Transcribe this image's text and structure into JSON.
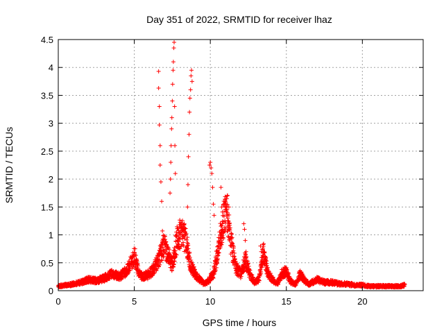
{
  "chart_data": {
    "type": "scatter",
    "title": "Day 351 of 2022, SRMTID for receiver lhaz",
    "xlabel": "GPS time / hours",
    "ylabel": "SRMTID / TECUs",
    "xlim": [
      0,
      24
    ],
    "ylim": [
      0,
      4.5
    ],
    "grid": true,
    "marker": "+",
    "color": "#ff0000",
    "x_ticks": [
      0,
      5,
      10,
      15,
      20
    ],
    "x_tick_labels": [
      "0",
      "5",
      "10",
      "15",
      "20"
    ],
    "y_ticks": [
      0,
      0.5,
      1,
      1.5,
      2,
      2.5,
      3,
      3.5,
      4,
      4.5
    ],
    "y_tick_labels": [
      "0",
      "0.5",
      "1",
      "1.5",
      "2",
      "2.5",
      "3",
      "3.5",
      "4",
      "4.5"
    ],
    "series": [
      {
        "name": "lhaz",
        "envelope": {
          "x": [
            0,
            0.5,
            1,
            1.5,
            2,
            2.5,
            3,
            3.5,
            4,
            4.5,
            4.8,
            5,
            5.3,
            5.6,
            6,
            6.3,
            6.6,
            6.9,
            7.2,
            7.5,
            7.8,
            8.1,
            8.4,
            8.7,
            9,
            9.3,
            9.6,
            9.9,
            10.2,
            10.5,
            10.8,
            11.1,
            11.4,
            11.7,
            12,
            12.3,
            12.6,
            12.9,
            13.2,
            13.5,
            13.8,
            14.1,
            14.4,
            14.7,
            15,
            15.3,
            15.6,
            15.9,
            16.2,
            16.5,
            17,
            17.5,
            18,
            18.5,
            19,
            19.5,
            20,
            20.5,
            21,
            21.5,
            22,
            22.5,
            22.8
          ],
          "y": [
            0.08,
            0.1,
            0.12,
            0.15,
            0.2,
            0.18,
            0.22,
            0.3,
            0.25,
            0.35,
            0.5,
            0.65,
            0.3,
            0.25,
            0.3,
            0.4,
            0.55,
            0.8,
            0.7,
            0.45,
            0.9,
            1.05,
            0.9,
            0.45,
            0.3,
            0.2,
            0.12,
            0.18,
            0.3,
            0.7,
            1.2,
            1.45,
            0.8,
            0.4,
            0.3,
            0.55,
            0.3,
            0.15,
            0.2,
            0.7,
            0.3,
            0.2,
            0.12,
            0.3,
            0.35,
            0.15,
            0.12,
            0.3,
            0.18,
            0.12,
            0.2,
            0.15,
            0.15,
            0.12,
            0.12,
            0.1,
            0.1,
            0.08,
            0.08,
            0.08,
            0.08,
            0.08,
            0.1
          ]
        },
        "spikes": [
          {
            "x": [
              6.6,
              6.6,
              6.65,
              6.65,
              6.7,
              6.7,
              6.75,
              6.8,
              6.85
            ],
            "y": [
              3.93,
              3.63,
              3.3,
              2.97,
              2.6,
              2.25,
              1.95,
              1.6,
              1.07
            ]
          },
          {
            "x": [
              7.35,
              7.38,
              7.4,
              7.42,
              7.45,
              7.47,
              7.5,
              7.52,
              7.55,
              7.57,
              7.6,
              7.62,
              7.65,
              7.67,
              7.7
            ],
            "y": [
              1.75,
              2.0,
              2.3,
              2.6,
              2.9,
              3.1,
              3.4,
              3.7,
              3.95,
              4.1,
              4.35,
              4.45,
              3.3,
              2.6,
              2.1
            ]
          },
          {
            "x": [
              8.5,
              8.53,
              8.56,
              8.6,
              8.63,
              8.66,
              8.7,
              8.73,
              8.76,
              8.8
            ],
            "y": [
              1.5,
              1.9,
              2.4,
              2.8,
              3.2,
              3.45,
              3.6,
              3.85,
              3.95,
              3.75
            ]
          },
          {
            "x": [
              9.95,
              10.0,
              10.05,
              10.1,
              10.15,
              10.2,
              10.25
            ],
            "y": [
              2.25,
              2.3,
              2.2,
              2.1,
              1.85,
              1.55,
              1.35
            ]
          },
          {
            "x": [
              10.7,
              10.75,
              10.8,
              10.85
            ],
            "y": [
              1.85,
              1.5,
              1.2,
              0.95
            ]
          },
          {
            "x": [
              11.0,
              11.05,
              11.1,
              11.15,
              11.2
            ],
            "y": [
              1.6,
              1.5,
              1.45,
              1.3,
              1.1
            ]
          },
          {
            "x": [
              12.2,
              12.25,
              12.3,
              12.35
            ],
            "y": [
              1.2,
              1.1,
              0.9,
              0.7
            ]
          },
          {
            "x": [
              13.3,
              13.35,
              13.4
            ],
            "y": [
              0.8,
              0.7,
              0.55
            ]
          }
        ]
      }
    ]
  }
}
